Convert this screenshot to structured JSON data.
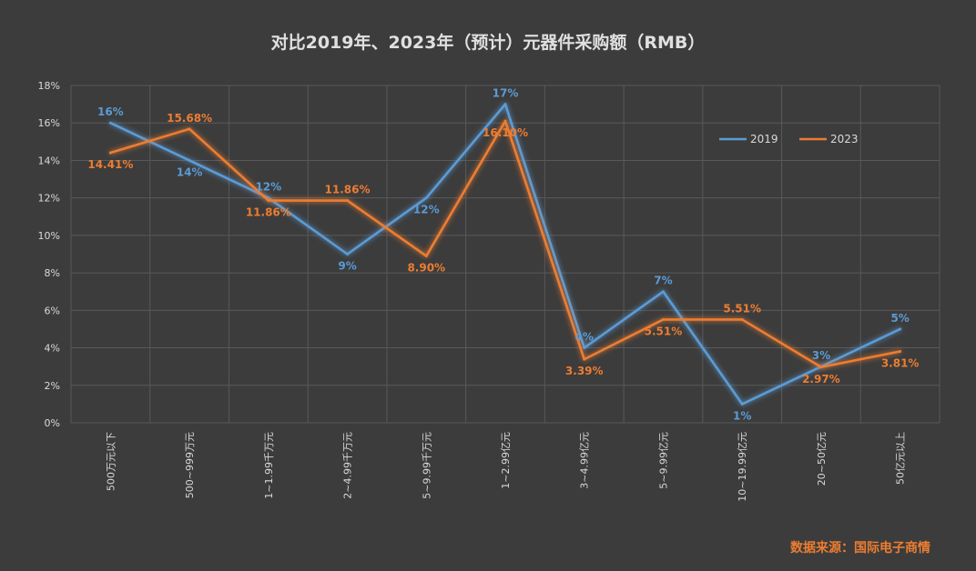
{
  "chart_data": {
    "type": "line",
    "title": "对比2019年、2023年（预计）元器件采购额（RMB）",
    "source": "数据来源：国际电子商情",
    "categories": [
      "500万元以下",
      "500~999万元",
      "1~1.99千万元",
      "2~4.99千万元",
      "5~9.99千万元",
      "1~2.99亿元",
      "3~4.99亿元",
      "5~9.99亿元",
      "10~19.99亿元",
      "20~50亿元",
      "50亿元以上"
    ],
    "ylim": [
      0,
      18
    ],
    "yticks": [
      "0%",
      "2%",
      "4%",
      "6%",
      "8%",
      "10%",
      "12%",
      "14%",
      "16%",
      "18%"
    ],
    "grid": true,
    "legend": "top-right",
    "series": [
      {
        "name": "2019",
        "color": "#5b9bd5",
        "values": [
          16,
          14,
          12,
          9,
          12,
          17,
          4,
          7,
          1,
          3,
          5
        ],
        "labels": [
          "16%",
          "14%",
          "12%",
          "9%",
          "12%",
          "17%",
          "4%",
          "7%",
          "1%",
          "3%",
          "5%"
        ]
      },
      {
        "name": "2023",
        "color": "#ed7d31",
        "values": [
          14.41,
          15.68,
          11.86,
          11.86,
          8.9,
          16.1,
          3.39,
          5.51,
          5.51,
          2.97,
          3.81
        ],
        "labels": [
          "14.41%",
          "15.68%",
          "11.86%",
          "11.86%",
          "8.90%",
          "16.10%",
          "3.39%",
          "5.51%",
          "5.51%",
          "2.97%",
          "3.81%"
        ]
      }
    ]
  }
}
